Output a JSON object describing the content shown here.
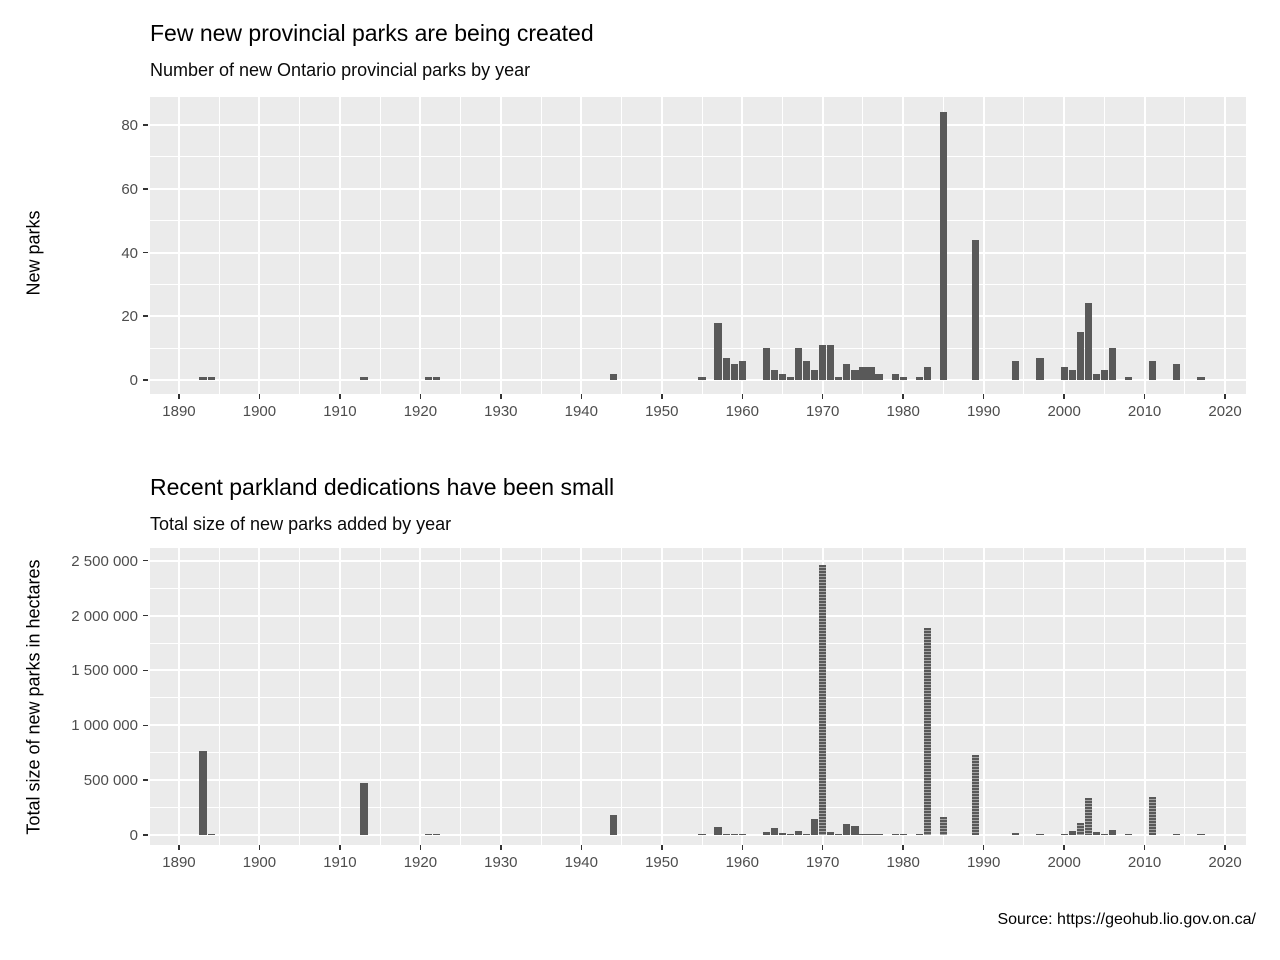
{
  "page": {
    "source_note": "Source: https://geohub.lio.gov.on.ca/"
  },
  "colors": {
    "background": "#FFFFFF",
    "panel_bg": "#EBEBEB",
    "grid": "#FFFFFF",
    "bar_fill": "#595959",
    "axis_text": "#4D4D4D",
    "tick_mark": "#333333",
    "title_text": "#000000"
  },
  "chart_data": [
    {
      "type": "bar",
      "title": "Few new provincial parks are being created",
      "subtitle": "Number of new Ontario provincial parks by year",
      "xlabel": "",
      "ylabel": "New parks",
      "legend": "none",
      "grid": "on",
      "xlim": [
        1886.4,
        2022.6
      ],
      "ylim": [
        -4.4,
        88.8
      ],
      "x_ticks": [
        1890,
        1900,
        1910,
        1920,
        1930,
        1940,
        1950,
        1960,
        1970,
        1980,
        1990,
        2000,
        2010,
        2020
      ],
      "y_ticks": [
        0,
        20,
        40,
        60,
        80
      ],
      "y_tick_labels": [
        "0",
        "20",
        "40",
        "60",
        "80"
      ],
      "bar_width_years": 0.9,
      "striped_years": [],
      "x": [
        1893,
        1894,
        1913,
        1921,
        1922,
        1944,
        1955,
        1957,
        1958,
        1959,
        1960,
        1963,
        1964,
        1965,
        1966,
        1967,
        1968,
        1969,
        1970,
        1971,
        1972,
        1973,
        1974,
        1975,
        1976,
        1977,
        1979,
        1980,
        1982,
        1983,
        1985,
        1989,
        1994,
        1997,
        2000,
        2001,
        2002,
        2003,
        2004,
        2005,
        2006,
        2008,
        2011,
        2014,
        2017
      ],
      "values": [
        1,
        1,
        1,
        1,
        1,
        2,
        1,
        18,
        7,
        5,
        6,
        10,
        3,
        2,
        1,
        10,
        6,
        3,
        11,
        11,
        1,
        5,
        3,
        4,
        4,
        2,
        2,
        1,
        1,
        4,
        84,
        44,
        6,
        7,
        4,
        3,
        15,
        24,
        2,
        3,
        10,
        1,
        6,
        5,
        1
      ]
    },
    {
      "type": "bar",
      "title": "Recent parkland dedications have been small",
      "subtitle": "Total size of new parks added by year",
      "xlabel": "",
      "ylabel": "Total size of new parks in hectares",
      "legend": "none",
      "grid": "on",
      "xlim": [
        1886.4,
        2022.6
      ],
      "ylim": [
        -91000,
        2616000
      ],
      "x_ticks": [
        1890,
        1900,
        1910,
        1920,
        1930,
        1940,
        1950,
        1960,
        1970,
        1980,
        1990,
        2000,
        2010,
        2020
      ],
      "y_ticks": [
        0,
        500000,
        1000000,
        1500000,
        2000000,
        2500000
      ],
      "y_tick_labels": [
        "0",
        "500 000",
        "1 000 000",
        "1 500 000",
        "2 000 000",
        "2 500 000"
      ],
      "bar_width_years": 0.9,
      "striped_years": [
        1970,
        1983,
        1985,
        1989,
        2002,
        2003,
        2011
      ],
      "x": [
        1893,
        1894,
        1913,
        1921,
        1922,
        1944,
        1955,
        1957,
        1958,
        1959,
        1960,
        1963,
        1964,
        1965,
        1966,
        1967,
        1968,
        1969,
        1970,
        1971,
        1972,
        1973,
        1974,
        1975,
        1976,
        1977,
        1979,
        1980,
        1982,
        1983,
        1985,
        1989,
        1994,
        1997,
        2000,
        2001,
        2002,
        2003,
        2004,
        2005,
        2006,
        2008,
        2011,
        2014,
        2017
      ],
      "values": [
        770000,
        10000,
        470000,
        2000,
        2000,
        180000,
        1000,
        75000,
        5000,
        8000,
        8000,
        30000,
        60000,
        15000,
        5000,
        40000,
        8000,
        150000,
        2460000,
        25000,
        5000,
        100000,
        85000,
        8000,
        8000,
        8000,
        10000,
        3000,
        5000,
        1890000,
        165000,
        730000,
        15000,
        4000,
        3000,
        40000,
        105000,
        340000,
        30000,
        3000,
        50000,
        2000,
        345000,
        10000,
        2000
      ]
    }
  ]
}
